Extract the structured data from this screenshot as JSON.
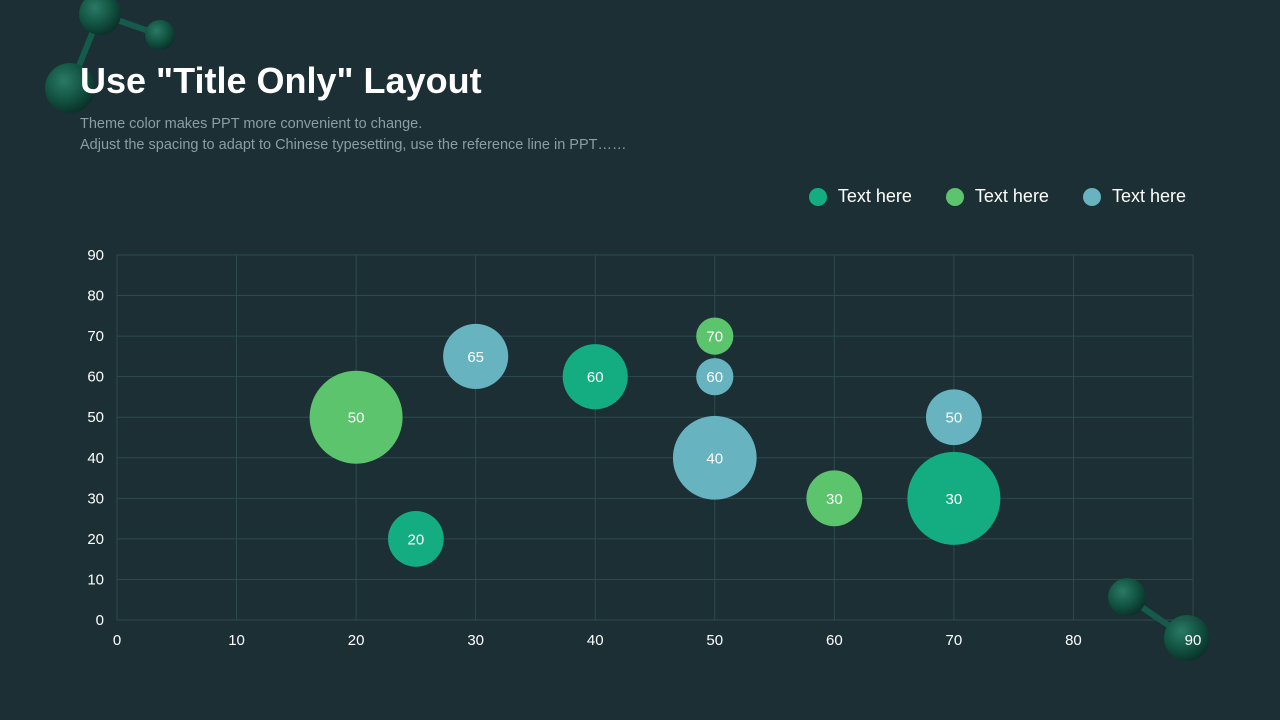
{
  "slide": {
    "title": "Use \"Title Only\" Layout",
    "subtitle_lines": [
      "Theme color makes PPT more convenient to change.",
      "Adjust the spacing to adapt to Chinese typesetting, use the reference line in PPT……"
    ]
  },
  "colors": {
    "background": "#1b2f35",
    "grid": "#2d4a50",
    "series1": "#14ad82",
    "series2": "#5cc46c",
    "series3": "#67b3bf",
    "decor": "#0f4a40"
  },
  "decoration_icons": [
    "molecule-icon",
    "molecule-icon"
  ],
  "chart_data": {
    "type": "bubble",
    "xlim": [
      0,
      90
    ],
    "ylim": [
      0,
      90
    ],
    "x_ticks": [
      0,
      10,
      20,
      30,
      40,
      50,
      60,
      70,
      80,
      90
    ],
    "y_ticks": [
      0,
      10,
      20,
      30,
      40,
      50,
      60,
      70,
      80,
      90
    ],
    "grid": true,
    "legend_position": "top-right",
    "series": [
      {
        "name": "Text here",
        "color": "#14ad82",
        "points": [
          {
            "x": 25,
            "y": 20,
            "size": 3,
            "label": "20"
          },
          {
            "x": 40,
            "y": 60,
            "size": 3.5,
            "label": "60"
          },
          {
            "x": 70,
            "y": 30,
            "size": 5,
            "label": "30"
          }
        ]
      },
      {
        "name": "Text here",
        "color": "#5cc46c",
        "points": [
          {
            "x": 20,
            "y": 50,
            "size": 5,
            "label": "50"
          },
          {
            "x": 50,
            "y": 70,
            "size": 2,
            "label": "70"
          },
          {
            "x": 60,
            "y": 30,
            "size": 3,
            "label": "30"
          }
        ]
      },
      {
        "name": "Text here",
        "color": "#67b3bf",
        "points": [
          {
            "x": 30,
            "y": 65,
            "size": 3.5,
            "label": "65"
          },
          {
            "x": 50,
            "y": 60,
            "size": 2,
            "label": "60"
          },
          {
            "x": 50,
            "y": 40,
            "size": 4.5,
            "label": "40"
          },
          {
            "x": 70,
            "y": 50,
            "size": 3,
            "label": "50"
          }
        ]
      }
    ]
  }
}
